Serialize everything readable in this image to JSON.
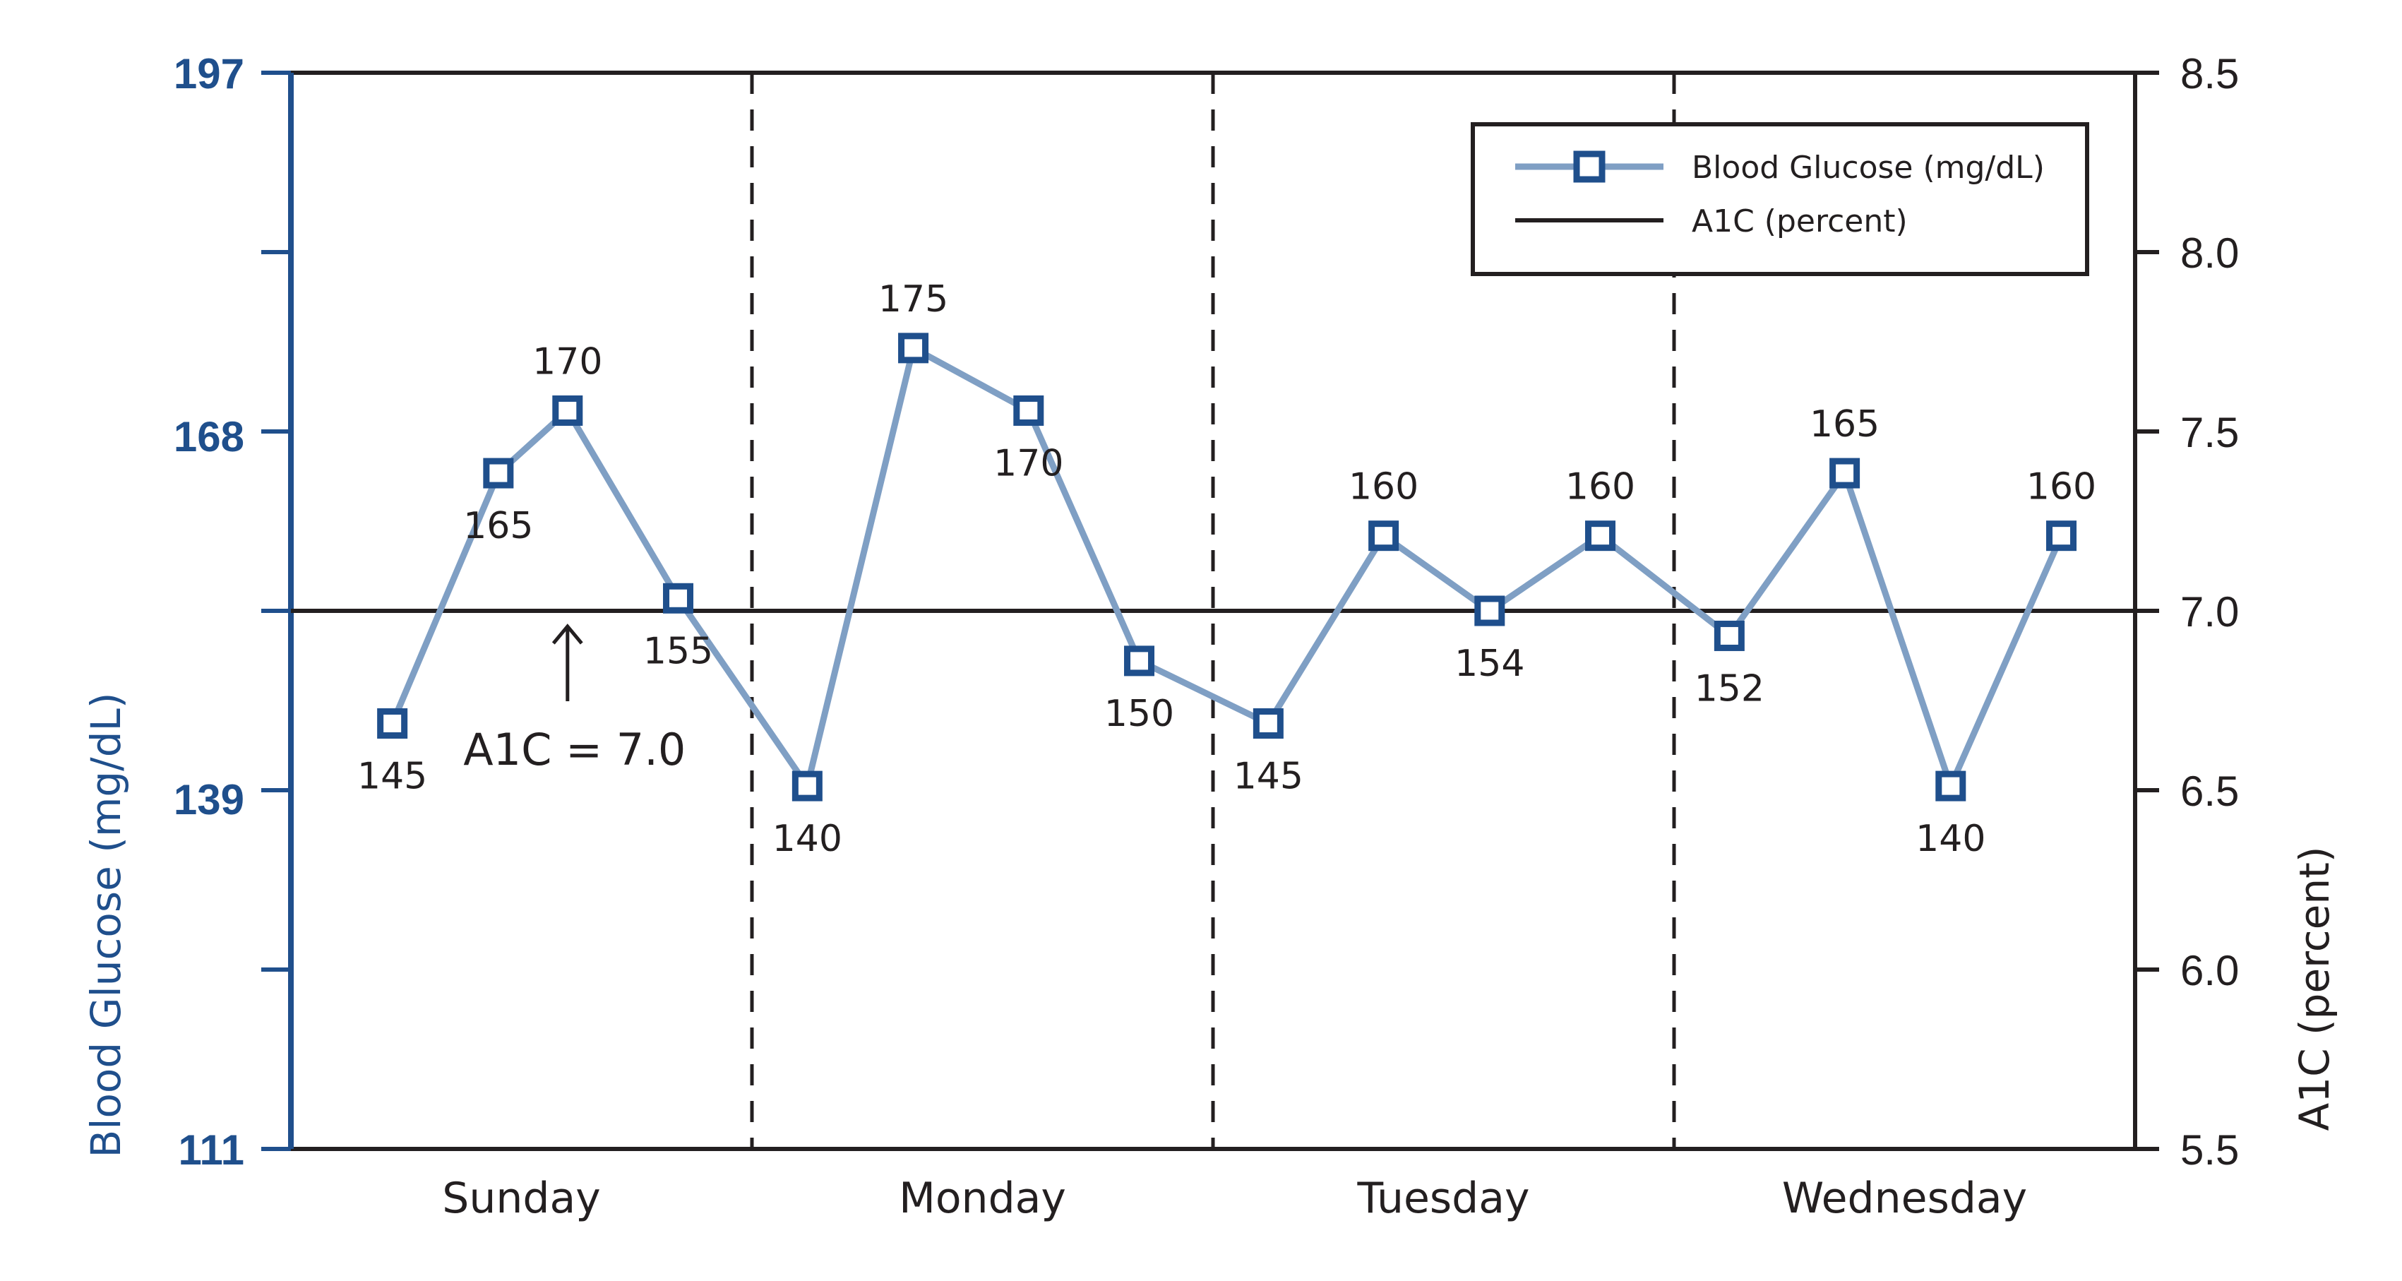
{
  "chart_data": {
    "type": "line",
    "left_axis": {
      "label": "Blood Glucose (mg/dL)",
      "ticks": [
        111,
        139,
        168,
        197
      ],
      "range": [
        111,
        197
      ],
      "color": "#1f4f8c"
    },
    "right_axis": {
      "label": "A1C (percent)",
      "ticks": [
        "5.5",
        "6.0",
        "6.5",
        "7.0",
        "7.5",
        "8.0",
        "8.5"
      ],
      "range": [
        5.5,
        8.5
      ],
      "color": "#231f20"
    },
    "days": [
      "Sunday",
      "Monday",
      "Tuesday",
      "Wednesday"
    ],
    "series": [
      {
        "name": "Blood Glucose (mg/dL)",
        "color": "#7f9fc4",
        "marker_color": "#1f4f8c",
        "x": [
          0.22,
          0.45,
          0.6,
          0.84,
          1.12,
          1.35,
          1.6,
          1.84,
          2.12,
          2.37,
          2.6,
          2.84,
          3.12,
          3.37,
          3.6,
          3.84
        ],
        "values": [
          145,
          165,
          170,
          155,
          140,
          175,
          170,
          150,
          145,
          160,
          154,
          160,
          152,
          165,
          140,
          160
        ],
        "value_labels": [
          "145",
          "165",
          "170",
          "155",
          "140",
          "175",
          "170",
          "150",
          "145",
          "160",
          "154",
          "160",
          "152",
          "165",
          "140",
          "160"
        ]
      },
      {
        "name": "A1C (percent)",
        "color": "#231f20",
        "value": 7.0
      }
    ],
    "annotation": {
      "text": "A1C = 7.0",
      "x": 0.6
    },
    "legend": {
      "position": "top-right",
      "entries": [
        "Blood Glucose (mg/dL)",
        "A1C (percent)"
      ]
    }
  }
}
